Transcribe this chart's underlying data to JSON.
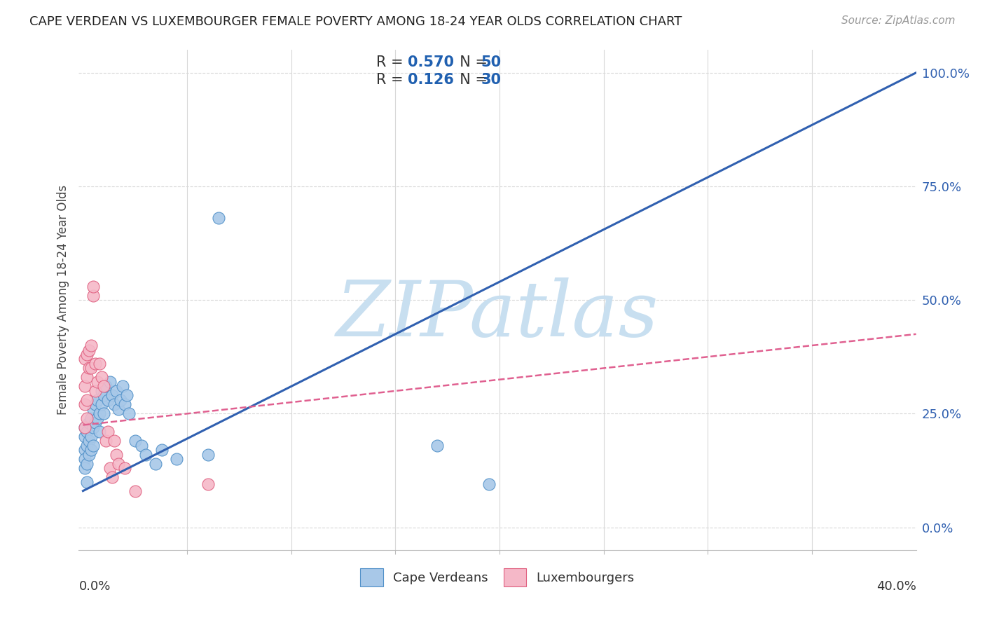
{
  "title": "CAPE VERDEAN VS LUXEMBOURGER FEMALE POVERTY AMONG 18-24 YEAR OLDS CORRELATION CHART",
  "source": "Source: ZipAtlas.com",
  "ylabel": "Female Poverty Among 18-24 Year Olds",
  "ytick_values": [
    0.0,
    0.25,
    0.5,
    0.75,
    1.0
  ],
  "ytick_labels": [
    "0%",
    "25.0%",
    "50.0%",
    "75.0%",
    "100.0%"
  ],
  "blue_R": "0.570",
  "blue_N": "50",
  "pink_R": "0.126",
  "pink_N": "30",
  "blue_fill": "#a8c8e8",
  "blue_edge": "#5090c8",
  "pink_fill": "#f5b8c8",
  "pink_edge": "#e06080",
  "blue_line": "#3060b0",
  "pink_line": "#e06090",
  "blue_dots": [
    [
      0.001,
      0.2
    ],
    [
      0.001,
      0.17
    ],
    [
      0.001,
      0.15
    ],
    [
      0.001,
      0.13
    ],
    [
      0.001,
      0.22
    ],
    [
      0.002,
      0.18
    ],
    [
      0.002,
      0.14
    ],
    [
      0.002,
      0.21
    ],
    [
      0.002,
      0.1
    ],
    [
      0.003,
      0.23
    ],
    [
      0.003,
      0.19
    ],
    [
      0.003,
      0.16
    ],
    [
      0.004,
      0.24
    ],
    [
      0.004,
      0.2
    ],
    [
      0.004,
      0.17
    ],
    [
      0.005,
      0.26
    ],
    [
      0.005,
      0.22
    ],
    [
      0.005,
      0.18
    ],
    [
      0.006,
      0.27
    ],
    [
      0.006,
      0.23
    ],
    [
      0.007,
      0.28
    ],
    [
      0.007,
      0.24
    ],
    [
      0.008,
      0.25
    ],
    [
      0.008,
      0.21
    ],
    [
      0.009,
      0.27
    ],
    [
      0.009,
      0.3
    ],
    [
      0.01,
      0.29
    ],
    [
      0.01,
      0.25
    ],
    [
      0.011,
      0.31
    ],
    [
      0.012,
      0.28
    ],
    [
      0.013,
      0.32
    ],
    [
      0.014,
      0.29
    ],
    [
      0.015,
      0.27
    ],
    [
      0.016,
      0.3
    ],
    [
      0.017,
      0.26
    ],
    [
      0.018,
      0.28
    ],
    [
      0.019,
      0.31
    ],
    [
      0.02,
      0.27
    ],
    [
      0.021,
      0.29
    ],
    [
      0.022,
      0.25
    ],
    [
      0.025,
      0.19
    ],
    [
      0.028,
      0.18
    ],
    [
      0.03,
      0.16
    ],
    [
      0.035,
      0.14
    ],
    [
      0.038,
      0.17
    ],
    [
      0.045,
      0.15
    ],
    [
      0.06,
      0.16
    ],
    [
      0.065,
      0.68
    ],
    [
      0.17,
      0.18
    ],
    [
      0.195,
      0.095
    ]
  ],
  "pink_dots": [
    [
      0.001,
      0.37
    ],
    [
      0.001,
      0.31
    ],
    [
      0.001,
      0.27
    ],
    [
      0.001,
      0.22
    ],
    [
      0.002,
      0.38
    ],
    [
      0.002,
      0.33
    ],
    [
      0.002,
      0.28
    ],
    [
      0.002,
      0.24
    ],
    [
      0.003,
      0.39
    ],
    [
      0.003,
      0.35
    ],
    [
      0.004,
      0.4
    ],
    [
      0.004,
      0.35
    ],
    [
      0.005,
      0.51
    ],
    [
      0.005,
      0.53
    ],
    [
      0.006,
      0.36
    ],
    [
      0.006,
      0.3
    ],
    [
      0.007,
      0.32
    ],
    [
      0.008,
      0.36
    ],
    [
      0.009,
      0.33
    ],
    [
      0.01,
      0.31
    ],
    [
      0.011,
      0.19
    ],
    [
      0.012,
      0.21
    ],
    [
      0.013,
      0.13
    ],
    [
      0.014,
      0.11
    ],
    [
      0.015,
      0.19
    ],
    [
      0.016,
      0.16
    ],
    [
      0.017,
      0.14
    ],
    [
      0.02,
      0.13
    ],
    [
      0.025,
      0.08
    ],
    [
      0.06,
      0.095
    ]
  ],
  "xlim": [
    -0.002,
    0.4
  ],
  "ylim": [
    -0.05,
    1.05
  ],
  "blue_trend_x": [
    0.0,
    0.4
  ],
  "blue_trend_y": [
    0.08,
    1.0
  ],
  "pink_trend_x": [
    0.0,
    0.4
  ],
  "pink_trend_y": [
    0.225,
    0.425
  ],
  "background_color": "#ffffff",
  "watermark": "ZIPatlas",
  "watermark_color": "#c8dff0",
  "grid_color": "#d8d8d8"
}
